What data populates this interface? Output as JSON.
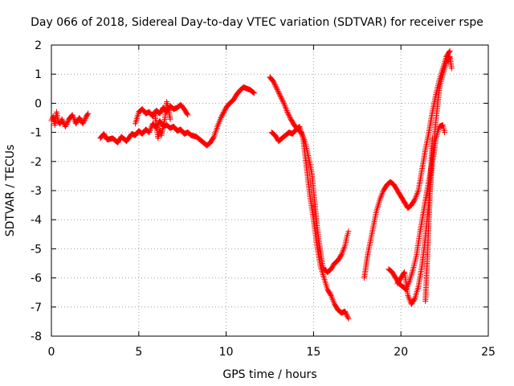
{
  "chart_data": {
    "type": "scatter",
    "title": "Day 066 of 2018, Sidereal Day-to-day VTEC variation (SDTVAR) for receiver rspe",
    "xlabel": "GPS time / hours",
    "ylabel": "SDTVAR / TECUs",
    "xlim": [
      0,
      25
    ],
    "ylim": [
      -8,
      2
    ],
    "x_ticks": [
      0,
      5,
      10,
      15,
      20,
      25
    ],
    "y_ticks": [
      -8,
      -7,
      -6,
      -5,
      -4,
      -3,
      -2,
      -1,
      0,
      1,
      2
    ],
    "grid": true,
    "marker": "+",
    "series": [
      {
        "name": "SDTVAR",
        "color": "#ff0000",
        "segments": [
          [
            [
              0.0,
              -0.6
            ],
            [
              0.1,
              -0.45
            ],
            [
              0.2,
              -0.75
            ],
            [
              0.3,
              -0.3
            ],
            [
              0.4,
              -0.65
            ],
            [
              0.5,
              -0.7
            ],
            [
              0.6,
              -0.55
            ],
            [
              0.8,
              -0.8
            ],
            [
              1.0,
              -0.55
            ],
            [
              1.2,
              -0.4
            ],
            [
              1.4,
              -0.7
            ],
            [
              1.6,
              -0.5
            ],
            [
              1.8,
              -0.7
            ],
            [
              2.0,
              -0.45
            ],
            [
              2.1,
              -0.35
            ]
          ],
          [
            [
              2.8,
              -1.2
            ],
            [
              3.0,
              -1.05
            ],
            [
              3.2,
              -1.25
            ],
            [
              3.5,
              -1.2
            ],
            [
              3.8,
              -1.35
            ],
            [
              4.0,
              -1.15
            ],
            [
              4.3,
              -1.3
            ],
            [
              4.6,
              -1.05
            ],
            [
              4.8,
              -1.1
            ],
            [
              5.0,
              -0.95
            ],
            [
              5.2,
              -1.05
            ],
            [
              5.4,
              -0.9
            ],
            [
              5.6,
              -1.0
            ],
            [
              5.8,
              -0.7
            ],
            [
              6.0,
              -0.85
            ],
            [
              6.2,
              -0.6
            ],
            [
              6.4,
              -0.8
            ],
            [
              6.6,
              -0.75
            ],
            [
              6.8,
              -0.85
            ],
            [
              7.0,
              -0.8
            ],
            [
              7.2,
              -0.95
            ],
            [
              7.4,
              -0.9
            ],
            [
              7.6,
              -1.05
            ],
            [
              7.8,
              -1.0
            ],
            [
              8.0,
              -1.1
            ],
            [
              8.3,
              -1.15
            ],
            [
              8.6,
              -1.3
            ],
            [
              8.9,
              -1.45
            ],
            [
              9.1,
              -1.35
            ],
            [
              9.3,
              -1.15
            ],
            [
              9.5,
              -0.8
            ],
            [
              9.7,
              -0.5
            ],
            [
              10.0,
              -0.15
            ],
            [
              10.2,
              0.0
            ],
            [
              10.4,
              0.1
            ],
            [
              10.6,
              0.3
            ],
            [
              10.8,
              0.45
            ],
            [
              11.0,
              0.55
            ],
            [
              11.2,
              0.5
            ],
            [
              11.4,
              0.45
            ],
            [
              11.6,
              0.35
            ]
          ],
          [
            [
              4.8,
              -0.7
            ],
            [
              5.0,
              -0.3
            ],
            [
              5.2,
              -0.2
            ],
            [
              5.4,
              -0.35
            ],
            [
              5.6,
              -0.3
            ],
            [
              5.8,
              -0.45
            ],
            [
              6.0,
              -0.25
            ],
            [
              6.2,
              -0.35
            ],
            [
              6.4,
              -0.15
            ],
            [
              6.6,
              -0.3
            ],
            [
              6.8,
              -0.1
            ],
            [
              7.0,
              -0.2
            ],
            [
              7.2,
              -0.15
            ],
            [
              7.4,
              -0.05
            ],
            [
              7.6,
              -0.2
            ],
            [
              7.8,
              -0.4
            ]
          ],
          [
            [
              5.9,
              -0.3
            ],
            [
              6.0,
              -0.7
            ],
            [
              6.1,
              -1.2
            ],
            [
              6.2,
              -0.9
            ],
            [
              6.3,
              -1.1
            ],
            [
              6.4,
              -0.8
            ],
            [
              6.5,
              -0.5
            ],
            [
              6.6,
              0.05
            ],
            [
              6.7,
              -0.2
            ],
            [
              6.8,
              -0.55
            ]
          ],
          [
            [
              12.5,
              0.9
            ],
            [
              12.7,
              0.75
            ],
            [
              12.9,
              0.5
            ],
            [
              13.1,
              0.25
            ],
            [
              13.3,
              0.0
            ],
            [
              13.5,
              -0.3
            ],
            [
              13.7,
              -0.55
            ],
            [
              13.9,
              -0.75
            ],
            [
              14.1,
              -0.9
            ],
            [
              14.3,
              -1.0
            ],
            [
              14.5,
              -1.3
            ],
            [
              14.7,
              -1.8
            ],
            [
              14.9,
              -2.4
            ],
            [
              15.0,
              -3.0
            ],
            [
              15.1,
              -3.6
            ],
            [
              15.2,
              -4.2
            ],
            [
              15.3,
              -4.7
            ],
            [
              15.4,
              -5.1
            ],
            [
              15.5,
              -5.5
            ],
            [
              15.6,
              -5.7
            ],
            [
              15.8,
              -5.8
            ],
            [
              16.0,
              -5.7
            ],
            [
              16.2,
              -5.5
            ],
            [
              16.4,
              -5.4
            ],
            [
              16.6,
              -5.2
            ],
            [
              16.8,
              -4.9
            ],
            [
              16.9,
              -4.6
            ],
            [
              17.0,
              -4.4
            ]
          ],
          [
            [
              12.6,
              -1.0
            ],
            [
              12.8,
              -1.1
            ],
            [
              13.0,
              -1.3
            ],
            [
              13.2,
              -1.2
            ],
            [
              13.4,
              -1.1
            ],
            [
              13.6,
              -1.0
            ],
            [
              13.8,
              -1.05
            ],
            [
              14.0,
              -0.9
            ],
            [
              14.2,
              -0.8
            ],
            [
              14.4,
              -1.2
            ],
            [
              14.6,
              -2.2
            ],
            [
              14.8,
              -3.2
            ],
            [
              15.0,
              -4.0
            ],
            [
              15.2,
              -4.9
            ],
            [
              15.4,
              -5.6
            ],
            [
              15.6,
              -6.0
            ],
            [
              15.8,
              -6.4
            ],
            [
              16.0,
              -6.6
            ],
            [
              16.2,
              -6.9
            ],
            [
              16.4,
              -7.1
            ],
            [
              16.6,
              -7.2
            ],
            [
              16.8,
              -7.15
            ],
            [
              17.0,
              -7.4
            ]
          ],
          [
            [
              17.9,
              -6.0
            ],
            [
              18.0,
              -5.6
            ],
            [
              18.1,
              -5.2
            ],
            [
              18.2,
              -4.9
            ],
            [
              18.4,
              -4.3
            ],
            [
              18.6,
              -3.7
            ],
            [
              18.8,
              -3.3
            ],
            [
              19.0,
              -3.0
            ],
            [
              19.2,
              -2.8
            ],
            [
              19.4,
              -2.7
            ],
            [
              19.6,
              -2.8
            ],
            [
              19.8,
              -3.0
            ],
            [
              20.0,
              -3.2
            ],
            [
              20.2,
              -3.4
            ],
            [
              20.4,
              -3.6
            ],
            [
              20.6,
              -3.5
            ],
            [
              20.8,
              -3.3
            ],
            [
              21.0,
              -3.0
            ],
            [
              21.2,
              -2.3
            ],
            [
              21.4,
              -1.6
            ],
            [
              21.6,
              -1.0
            ],
            [
              21.8,
              -0.3
            ],
            [
              22.0,
              0.3
            ],
            [
              22.2,
              0.8
            ],
            [
              22.4,
              1.2
            ],
            [
              22.6,
              1.6
            ],
            [
              22.8,
              1.8
            ]
          ],
          [
            [
              19.3,
              -5.7
            ],
            [
              19.5,
              -5.8
            ],
            [
              19.7,
              -6.0
            ],
            [
              19.9,
              -6.2
            ],
            [
              20.1,
              -6.3
            ],
            [
              20.3,
              -6.4
            ],
            [
              20.5,
              -6.1
            ],
            [
              20.7,
              -5.7
            ],
            [
              20.9,
              -5.2
            ],
            [
              21.1,
              -4.4
            ],
            [
              21.3,
              -3.7
            ],
            [
              21.5,
              -3.0
            ],
            [
              21.7,
              -2.3
            ],
            [
              21.9,
              -1.7
            ],
            [
              22.0,
              -1.2
            ],
            [
              22.2,
              -0.8
            ],
            [
              22.4,
              -0.75
            ],
            [
              22.5,
              -1.0
            ]
          ],
          [
            [
              19.8,
              -6.2
            ],
            [
              20.0,
              -6.0
            ],
            [
              20.2,
              -5.8
            ],
            [
              20.4,
              -6.6
            ],
            [
              20.6,
              -6.9
            ],
            [
              20.8,
              -6.7
            ],
            [
              21.0,
              -6.3
            ],
            [
              21.2,
              -5.6
            ],
            [
              21.4,
              -4.6
            ],
            [
              21.6,
              -3.4
            ],
            [
              21.8,
              -2.0
            ],
            [
              22.0,
              -0.6
            ],
            [
              22.2,
              0.5
            ],
            [
              22.4,
              1.0
            ],
            [
              22.6,
              1.4
            ],
            [
              22.8,
              1.6
            ],
            [
              22.9,
              1.2
            ]
          ],
          [
            [
              21.4,
              -6.8
            ],
            [
              21.5,
              -5.5
            ],
            [
              21.6,
              -4.0
            ],
            [
              21.7,
              -2.5
            ],
            [
              21.8,
              -1.2
            ]
          ]
        ]
      }
    ]
  }
}
